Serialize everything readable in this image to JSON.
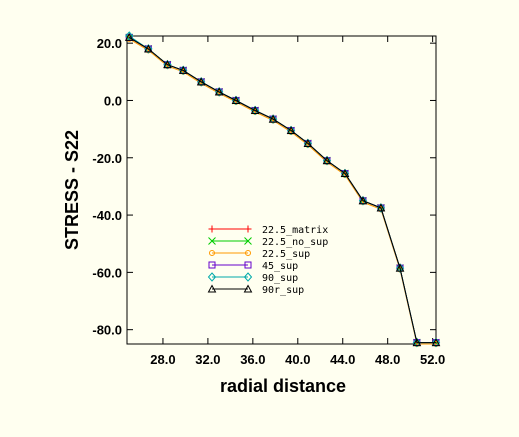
{
  "chart_data": {
    "type": "line",
    "xlabel": "radial distance",
    "ylabel": "STRESS - S22",
    "xlim": [
      24.8,
      52.3
    ],
    "ylim": [
      -85,
      22.5
    ],
    "xticks": [
      28.0,
      32.0,
      36.0,
      40.0,
      44.0,
      48.0,
      52.0
    ],
    "xtick_labels": [
      "28.0",
      "32.0",
      "36.0",
      "40.0",
      "44.0",
      "48.0",
      "52.0"
    ],
    "yticks": [
      20.0,
      0.0,
      -20.0,
      -40.0,
      -60.0,
      -80.0
    ],
    "ytick_labels": [
      "20.0",
      "0.0",
      "-20.0",
      "-40.0",
      "-60.0",
      "-80.0"
    ],
    "legend_position": "center-left",
    "x": [
      25.0,
      26.7,
      28.4,
      29.8,
      31.4,
      33.0,
      34.5,
      36.2,
      37.8,
      39.4,
      40.9,
      42.6,
      44.2,
      45.8,
      47.4,
      49.1,
      50.6,
      52.3
    ],
    "series": [
      {
        "name": "22.5_matrix",
        "color": "#ff0000",
        "marker": "plus",
        "values": [
          22.0,
          18.0,
          12.5,
          10.5,
          6.5,
          3.0,
          0.0,
          -3.5,
          -6.5,
          -10.5,
          -15.0,
          -21.0,
          -25.5,
          -35.0,
          -37.5,
          -58.5,
          -84.5,
          -84.5
        ]
      },
      {
        "name": "22.5_no_sup",
        "color": "#00cc00",
        "marker": "x",
        "values": [
          22.0,
          18.0,
          12.5,
          10.5,
          6.5,
          3.0,
          0.0,
          -3.5,
          -6.5,
          -10.5,
          -15.0,
          -21.0,
          -25.5,
          -35.0,
          -37.5,
          -58.5,
          -84.5,
          -84.5
        ]
      },
      {
        "name": "22.5_sup",
        "color": "#ff9900",
        "marker": "circle",
        "values": [
          21.5,
          17.5,
          12.0,
          10.0,
          6.0,
          2.5,
          -0.5,
          -4.0,
          -7.0,
          -11.0,
          -15.5,
          -21.5,
          -26.0,
          -35.5,
          -38.0,
          -59.0,
          -85.0,
          -85.0
        ]
      },
      {
        "name": "45_sup",
        "color": "#6600cc",
        "marker": "square",
        "values": [
          22.0,
          18.0,
          12.5,
          10.5,
          6.5,
          3.0,
          0.0,
          -3.5,
          -6.5,
          -10.5,
          -15.0,
          -21.0,
          -25.5,
          -35.0,
          -37.5,
          -58.5,
          -84.5,
          -84.5
        ]
      },
      {
        "name": "90_sup",
        "color": "#00aaaa",
        "marker": "diamond",
        "values": [
          22.5,
          18.0,
          12.5,
          10.5,
          6.5,
          3.0,
          0.0,
          -3.5,
          -6.5,
          -10.5,
          -15.0,
          -21.0,
          -25.5,
          -35.0,
          -37.5,
          -58.5,
          -84.5,
          -84.5
        ]
      },
      {
        "name": "90r_sup",
        "color": "#000000",
        "marker": "triangle",
        "values": [
          22.0,
          18.0,
          12.5,
          10.5,
          6.5,
          3.0,
          0.0,
          -3.5,
          -6.5,
          -10.5,
          -15.0,
          -21.0,
          -25.5,
          -35.0,
          -37.5,
          -58.5,
          -84.5,
          -84.5
        ]
      }
    ]
  }
}
